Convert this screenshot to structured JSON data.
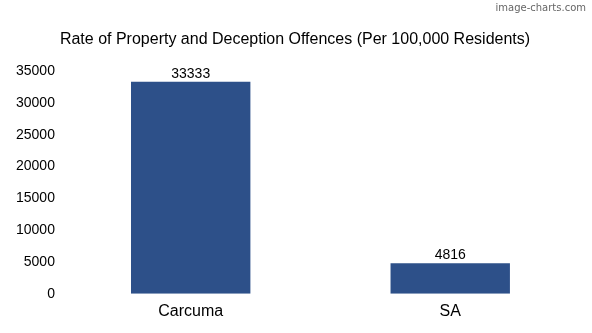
{
  "chart_data": {
    "type": "bar",
    "title": "Rate of Property and Deception Offences (Per 100,000 Residents)",
    "categories": [
      "Carcuma",
      "SA"
    ],
    "values": [
      33333,
      4816
    ],
    "color": "#2d5089",
    "ylim": [
      0,
      35000
    ],
    "yticks": [
      0,
      5000,
      10000,
      15000,
      20000,
      25000,
      30000,
      35000
    ],
    "grid": false,
    "data_labels": true,
    "annotations": [
      "image-charts.com"
    ]
  }
}
